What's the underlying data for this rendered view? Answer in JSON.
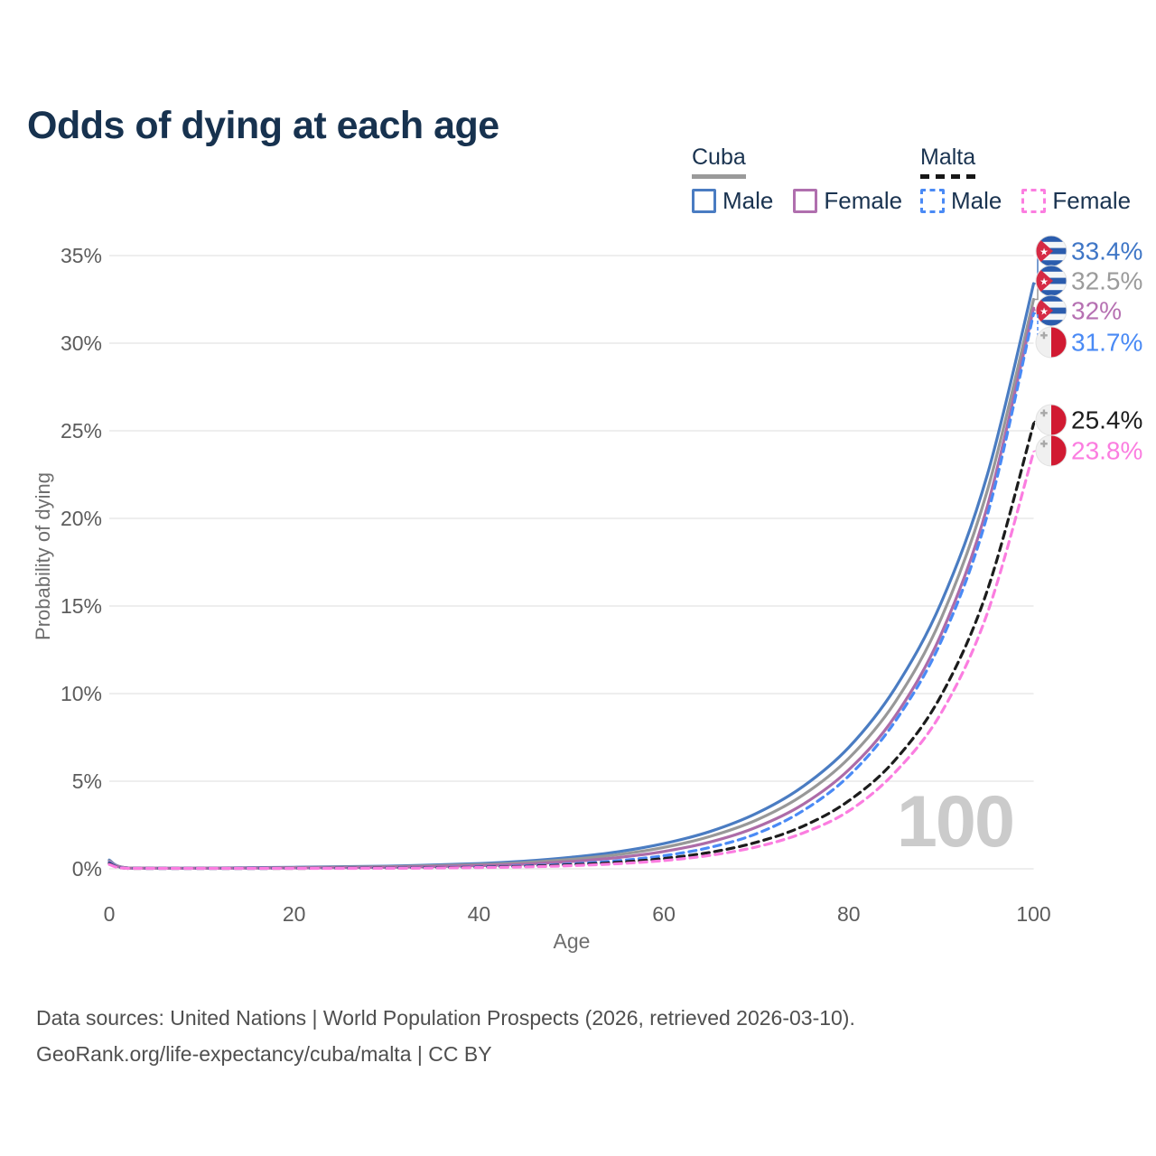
{
  "title": "Odds of dying at each age",
  "legend": {
    "groups": [
      {
        "country": "Cuba",
        "underline_style": "solid",
        "underline_color": "#9a9a9a",
        "items": [
          {
            "label": "Male",
            "color": "#4a7cc2",
            "dashed": false
          },
          {
            "label": "Female",
            "color": "#b06fae",
            "dashed": false
          }
        ]
      },
      {
        "country": "Malta",
        "underline_style": "dashed",
        "underline_color": "#161616",
        "items": [
          {
            "label": "Male",
            "color": "#4a8af5",
            "dashed": true
          },
          {
            "label": "Female",
            "color": "#fb7de0",
            "dashed": true
          }
        ]
      }
    ]
  },
  "hover_age_indicator": "100",
  "axes": {
    "x_title": "Age",
    "y_title": "Probability of dying"
  },
  "footer": {
    "line1": "Data sources: United Nations | World Population Prospects (2026, retrieved 2026-03-10).",
    "line2": "GeoRank.org/life-expectancy/cuba/malta | CC BY"
  },
  "chart_data": {
    "type": "line",
    "title": "Odds of dying at each age",
    "xlabel": "Age",
    "ylabel": "Probability of dying",
    "xlim": [
      0,
      100
    ],
    "ylim": [
      0,
      35
    ],
    "xticks": [
      0,
      20,
      40,
      60,
      80,
      100
    ],
    "yticks": [
      0,
      5,
      10,
      15,
      20,
      25,
      30,
      35
    ],
    "ytick_suffix": "%",
    "grid": "horizontal",
    "legend_position": "top-right",
    "x": [
      0,
      2,
      10,
      20,
      30,
      40,
      45,
      50,
      55,
      60,
      65,
      70,
      75,
      80,
      85,
      90,
      95,
      100
    ],
    "series": [
      {
        "id": "cuba-male",
        "name": "Cuba Male",
        "country": "Cuba",
        "sex": "male",
        "flag": "cuba",
        "color": "#4a7cc2",
        "label_color": "#3f76c6",
        "dashed": false,
        "end_label": "33.4%",
        "values": [
          0.5,
          0.05,
          0.04,
          0.09,
          0.15,
          0.3,
          0.44,
          0.66,
          0.97,
          1.44,
          2.13,
          3.16,
          4.68,
          6.93,
          10.3,
          15.2,
          22.5,
          33.4
        ]
      },
      {
        "id": "cuba-total",
        "name": "Cuba (both sexes)",
        "country": "Cuba",
        "sex": "both",
        "flag": "cuba",
        "color": "#989898",
        "label_color": "#9b9b9b",
        "dashed": false,
        "end_label": "32.5%",
        "values": [
          0.45,
          0.05,
          0.03,
          0.07,
          0.12,
          0.24,
          0.36,
          0.54,
          0.81,
          1.22,
          1.85,
          2.78,
          4.19,
          6.31,
          9.5,
          14.3,
          21.6,
          32.5
        ]
      },
      {
        "id": "cuba-female",
        "name": "Cuba Female",
        "country": "Cuba",
        "sex": "female",
        "flag": "cuba",
        "color": "#ad6ca8",
        "label_color": "#b671b2",
        "dashed": false,
        "end_label": "32%",
        "values": [
          0.4,
          0.04,
          0.03,
          0.05,
          0.08,
          0.18,
          0.27,
          0.42,
          0.64,
          0.99,
          1.53,
          2.37,
          3.66,
          5.65,
          8.7,
          13.4,
          20.7,
          32.0
        ]
      },
      {
        "id": "malta-male",
        "name": "Malta Male",
        "country": "Malta",
        "sex": "male",
        "flag": "malta",
        "color": "#4a8af5",
        "label_color": "#4a8af5",
        "dashed": true,
        "end_label": "31.7%",
        "values": [
          0.35,
          0.03,
          0.02,
          0.03,
          0.05,
          0.11,
          0.17,
          0.28,
          0.46,
          0.75,
          1.22,
          2.0,
          3.3,
          5.3,
          8.4,
          13.0,
          20.2,
          31.7
        ]
      },
      {
        "id": "malta-total",
        "name": "Malta (both sexes)",
        "country": "Malta",
        "sex": "both",
        "flag": "malta",
        "color": "#1c1c1c",
        "label_color": "#1c1c1c",
        "dashed": true,
        "end_label": "25.4%",
        "values": [
          0.3,
          0.025,
          0.015,
          0.025,
          0.04,
          0.09,
          0.14,
          0.23,
          0.37,
          0.59,
          0.94,
          1.51,
          2.42,
          3.88,
          6.2,
          9.9,
          15.9,
          25.4
        ]
      },
      {
        "id": "malta-female",
        "name": "Malta Female",
        "country": "Malta",
        "sex": "female",
        "flag": "malta",
        "color": "#fb7de0",
        "label_color": "#fb7de0",
        "dashed": true,
        "end_label": "23.8%",
        "values": [
          0.25,
          0.02,
          0.012,
          0.02,
          0.03,
          0.07,
          0.11,
          0.18,
          0.29,
          0.47,
          0.77,
          1.25,
          2.03,
          3.3,
          5.5,
          8.9,
          14.6,
          23.8
        ]
      }
    ]
  }
}
